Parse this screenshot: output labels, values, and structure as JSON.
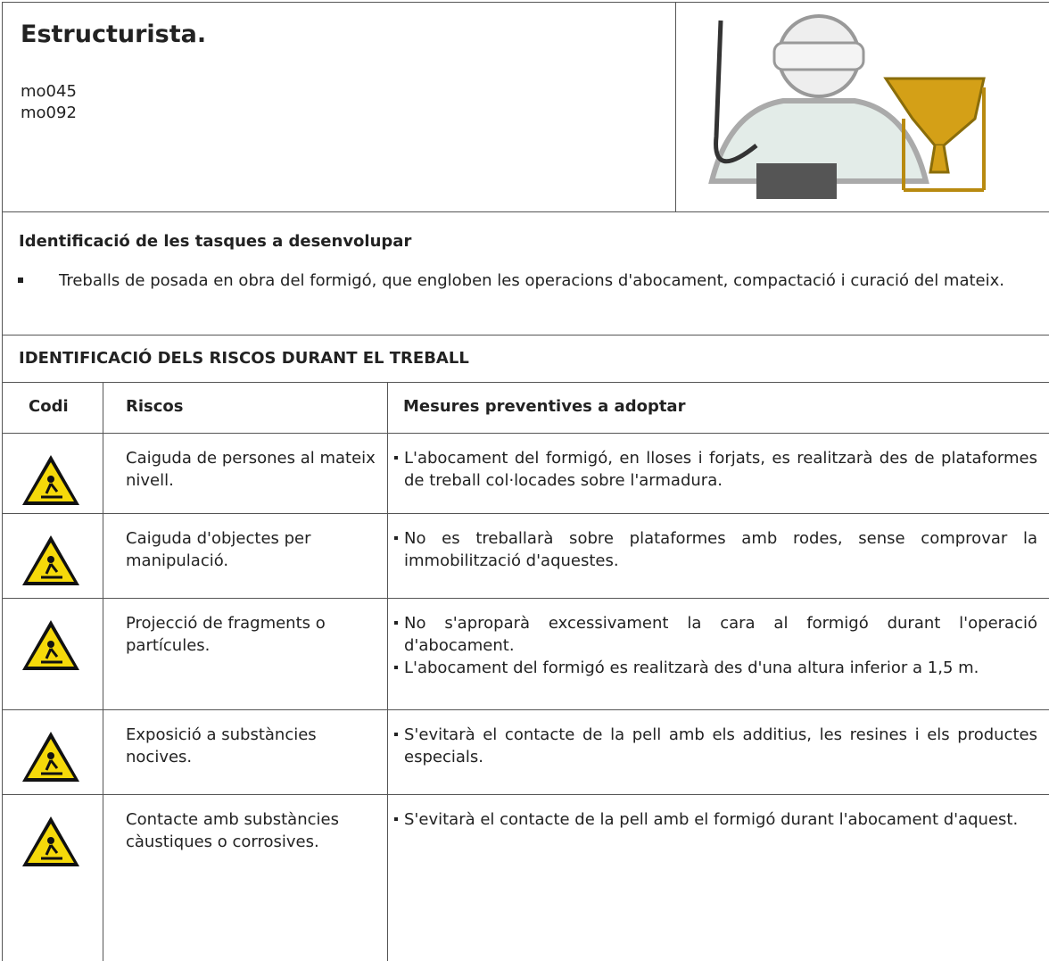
{
  "header": {
    "title": "Estructurista.",
    "codes": [
      "mo045",
      "mo092"
    ]
  },
  "tasks": {
    "title": "Identificació de les tasques a desenvolupar",
    "items": [
      "Treballs de posada en obra del formigó, que engloben les operacions d'abocament, compactació i curació del mateix."
    ]
  },
  "risks": {
    "title": "IDENTIFICACIÓ DELS RISCOS DURANT EL TREBALL",
    "columns": [
      "Codi",
      "Riscos",
      "Mesures preventives a adoptar"
    ],
    "rows": [
      {
        "risk": "Caiguda de persones al mateix nivell.",
        "measures": [
          "L'abocament del formigó, en lloses i forjats, es realitzarà des de plataformes de treball col·locades sobre l'armadura."
        ]
      },
      {
        "risk": "Caiguda d'objectes per manipulació.",
        "measures": [
          "No es treballarà sobre plataformes amb rodes, sense comprovar la immobilització d'aquestes."
        ]
      },
      {
        "risk": "Projecció de fragments o partícules.",
        "measures": [
          "No s'aproparà excessivament la cara al formigó durant l'operació d'abocament.",
          "L'abocament del formigó es realitzarà des d'una altura inferior a 1,5 m."
        ]
      },
      {
        "risk": "Exposició a substàncies nocives.",
        "measures": [
          "S'evitarà el contacte de la pell amb els additius, les resines i els productes especials."
        ]
      },
      {
        "risk": "Contacte amb substàncies càustiques o corrosives.",
        "measures": [
          "S'evitarà el contacte de la pell amb el formigó durant l'abocament d'aquest."
        ]
      }
    ]
  }
}
